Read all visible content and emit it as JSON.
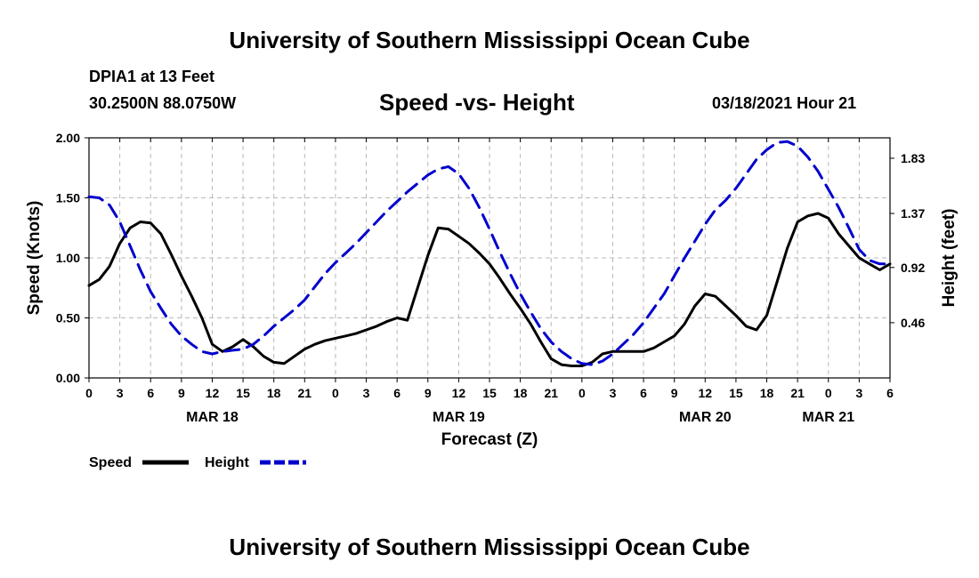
{
  "header": {
    "title": "University of Southern Mississippi Ocean Cube",
    "station": "DPIA1 at 13 Feet",
    "coords": "30.2500N 88.0750W",
    "subtitle": "Speed -vs- Height",
    "datetime": "03/18/2021 Hour 21"
  },
  "footer": {
    "title": "University of Southern Mississippi Ocean Cube"
  },
  "chart_data": {
    "type": "line",
    "xlabel": "Forecast (Z)",
    "ylabel_left": "Speed (Knots)",
    "ylabel_right": "Height (feet)",
    "x_range_hours": [
      0,
      78
    ],
    "x_ticks": [
      0,
      3,
      6,
      9,
      12,
      15,
      18,
      21,
      24,
      27,
      30,
      33,
      36,
      39,
      42,
      45,
      48,
      51,
      54,
      57,
      60,
      63,
      66,
      69,
      72,
      75,
      78
    ],
    "x_tick_labels": [
      "0",
      "3",
      "6",
      "9",
      "12",
      "15",
      "18",
      "21",
      "0",
      "3",
      "6",
      "9",
      "12",
      "15",
      "18",
      "21",
      "0",
      "3",
      "6",
      "9",
      "12",
      "15",
      "18",
      "21",
      "0",
      "3",
      "6"
    ],
    "date_labels": [
      {
        "label": "MAR 18",
        "hour": 12
      },
      {
        "label": "MAR 19",
        "hour": 36
      },
      {
        "label": "MAR 20",
        "hour": 60
      },
      {
        "label": "MAR 21",
        "hour": 72
      }
    ],
    "left_axis": {
      "min": 0,
      "max": 2.0,
      "ticks": [
        0.0,
        0.5,
        1.0,
        1.5,
        2.0
      ],
      "tick_labels": [
        "0.00",
        "0.50",
        "1.00",
        "1.50",
        "2.00"
      ]
    },
    "right_axis": {
      "min": 0.0,
      "max": 2.0,
      "ticks": [
        0.46,
        0.92,
        1.37,
        1.83
      ],
      "tick_labels": [
        "0.46",
        "0.92",
        "1.37",
        "1.83"
      ]
    },
    "grid": true,
    "series": [
      {
        "name": "Speed",
        "color": "#000000",
        "dashed": false,
        "axis": "left",
        "points": [
          [
            0,
            0.77
          ],
          [
            1,
            0.82
          ],
          [
            2,
            0.93
          ],
          [
            3,
            1.12
          ],
          [
            4,
            1.25
          ],
          [
            5,
            1.3
          ],
          [
            6,
            1.29
          ],
          [
            7,
            1.2
          ],
          [
            8,
            1.03
          ],
          [
            9,
            0.85
          ],
          [
            10,
            0.68
          ],
          [
            11,
            0.5
          ],
          [
            12,
            0.28
          ],
          [
            13,
            0.22
          ],
          [
            14,
            0.26
          ],
          [
            15,
            0.32
          ],
          [
            16,
            0.26
          ],
          [
            17,
            0.18
          ],
          [
            18,
            0.13
          ],
          [
            19,
            0.12
          ],
          [
            20,
            0.18
          ],
          [
            21,
            0.24
          ],
          [
            22,
            0.28
          ],
          [
            23,
            0.31
          ],
          [
            24,
            0.33
          ],
          [
            25,
            0.35
          ],
          [
            26,
            0.37
          ],
          [
            27,
            0.4
          ],
          [
            28,
            0.43
          ],
          [
            29,
            0.47
          ],
          [
            30,
            0.5
          ],
          [
            31,
            0.48
          ],
          [
            32,
            0.75
          ],
          [
            33,
            1.02
          ],
          [
            34,
            1.25
          ],
          [
            35,
            1.24
          ],
          [
            36,
            1.18
          ],
          [
            37,
            1.12
          ],
          [
            38,
            1.04
          ],
          [
            39,
            0.95
          ],
          [
            40,
            0.83
          ],
          [
            41,
            0.7
          ],
          [
            42,
            0.58
          ],
          [
            43,
            0.45
          ],
          [
            44,
            0.3
          ],
          [
            45,
            0.16
          ],
          [
            46,
            0.11
          ],
          [
            47,
            0.1
          ],
          [
            48,
            0.1
          ],
          [
            49,
            0.13
          ],
          [
            50,
            0.2
          ],
          [
            51,
            0.22
          ],
          [
            52,
            0.22
          ],
          [
            53,
            0.22
          ],
          [
            54,
            0.22
          ],
          [
            55,
            0.25
          ],
          [
            56,
            0.3
          ],
          [
            57,
            0.35
          ],
          [
            58,
            0.45
          ],
          [
            59,
            0.6
          ],
          [
            60,
            0.7
          ],
          [
            61,
            0.68
          ],
          [
            62,
            0.6
          ],
          [
            63,
            0.52
          ],
          [
            64,
            0.43
          ],
          [
            65,
            0.4
          ],
          [
            66,
            0.52
          ],
          [
            67,
            0.8
          ],
          [
            68,
            1.08
          ],
          [
            69,
            1.3
          ],
          [
            70,
            1.35
          ],
          [
            71,
            1.37
          ],
          [
            72,
            1.33
          ],
          [
            73,
            1.2
          ],
          [
            74,
            1.1
          ],
          [
            75,
            1.0
          ],
          [
            76,
            0.95
          ],
          [
            77,
            0.9
          ],
          [
            78,
            0.95
          ]
        ]
      },
      {
        "name": "Height",
        "color": "#0000cc",
        "dashed": true,
        "axis": "left",
        "points": [
          [
            0,
            1.51
          ],
          [
            1,
            1.5
          ],
          [
            2,
            1.44
          ],
          [
            3,
            1.3
          ],
          [
            4,
            1.1
          ],
          [
            5,
            0.9
          ],
          [
            6,
            0.72
          ],
          [
            7,
            0.58
          ],
          [
            8,
            0.45
          ],
          [
            9,
            0.35
          ],
          [
            10,
            0.28
          ],
          [
            11,
            0.22
          ],
          [
            12,
            0.2
          ],
          [
            13,
            0.22
          ],
          [
            14,
            0.23
          ],
          [
            15,
            0.24
          ],
          [
            16,
            0.28
          ],
          [
            17,
            0.35
          ],
          [
            18,
            0.43
          ],
          [
            19,
            0.5
          ],
          [
            20,
            0.57
          ],
          [
            21,
            0.65
          ],
          [
            22,
            0.76
          ],
          [
            23,
            0.87
          ],
          [
            24,
            0.96
          ],
          [
            25,
            1.04
          ],
          [
            26,
            1.12
          ],
          [
            27,
            1.21
          ],
          [
            28,
            1.3
          ],
          [
            29,
            1.39
          ],
          [
            30,
            1.47
          ],
          [
            31,
            1.55
          ],
          [
            32,
            1.62
          ],
          [
            33,
            1.69
          ],
          [
            34,
            1.74
          ],
          [
            35,
            1.76
          ],
          [
            36,
            1.7
          ],
          [
            37,
            1.58
          ],
          [
            38,
            1.42
          ],
          [
            39,
            1.24
          ],
          [
            40,
            1.05
          ],
          [
            41,
            0.87
          ],
          [
            42,
            0.7
          ],
          [
            43,
            0.55
          ],
          [
            44,
            0.41
          ],
          [
            45,
            0.3
          ],
          [
            46,
            0.22
          ],
          [
            47,
            0.16
          ],
          [
            48,
            0.12
          ],
          [
            49,
            0.11
          ],
          [
            50,
            0.14
          ],
          [
            51,
            0.2
          ],
          [
            52,
            0.28
          ],
          [
            53,
            0.36
          ],
          [
            54,
            0.46
          ],
          [
            55,
            0.58
          ],
          [
            56,
            0.7
          ],
          [
            57,
            0.85
          ],
          [
            58,
            1.0
          ],
          [
            59,
            1.14
          ],
          [
            60,
            1.28
          ],
          [
            61,
            1.4
          ],
          [
            62,
            1.48
          ],
          [
            63,
            1.58
          ],
          [
            64,
            1.7
          ],
          [
            65,
            1.82
          ],
          [
            66,
            1.9
          ],
          [
            67,
            1.96
          ],
          [
            68,
            1.97
          ],
          [
            69,
            1.93
          ],
          [
            70,
            1.84
          ],
          [
            71,
            1.72
          ],
          [
            72,
            1.57
          ],
          [
            73,
            1.42
          ],
          [
            74,
            1.25
          ],
          [
            75,
            1.07
          ],
          [
            76,
            0.98
          ],
          [
            77,
            0.95
          ],
          [
            78,
            0.95
          ]
        ]
      }
    ],
    "legend": [
      {
        "name": "Speed",
        "color": "#000000",
        "dashed": false
      },
      {
        "name": "Height",
        "color": "#0000cc",
        "dashed": true
      }
    ]
  }
}
